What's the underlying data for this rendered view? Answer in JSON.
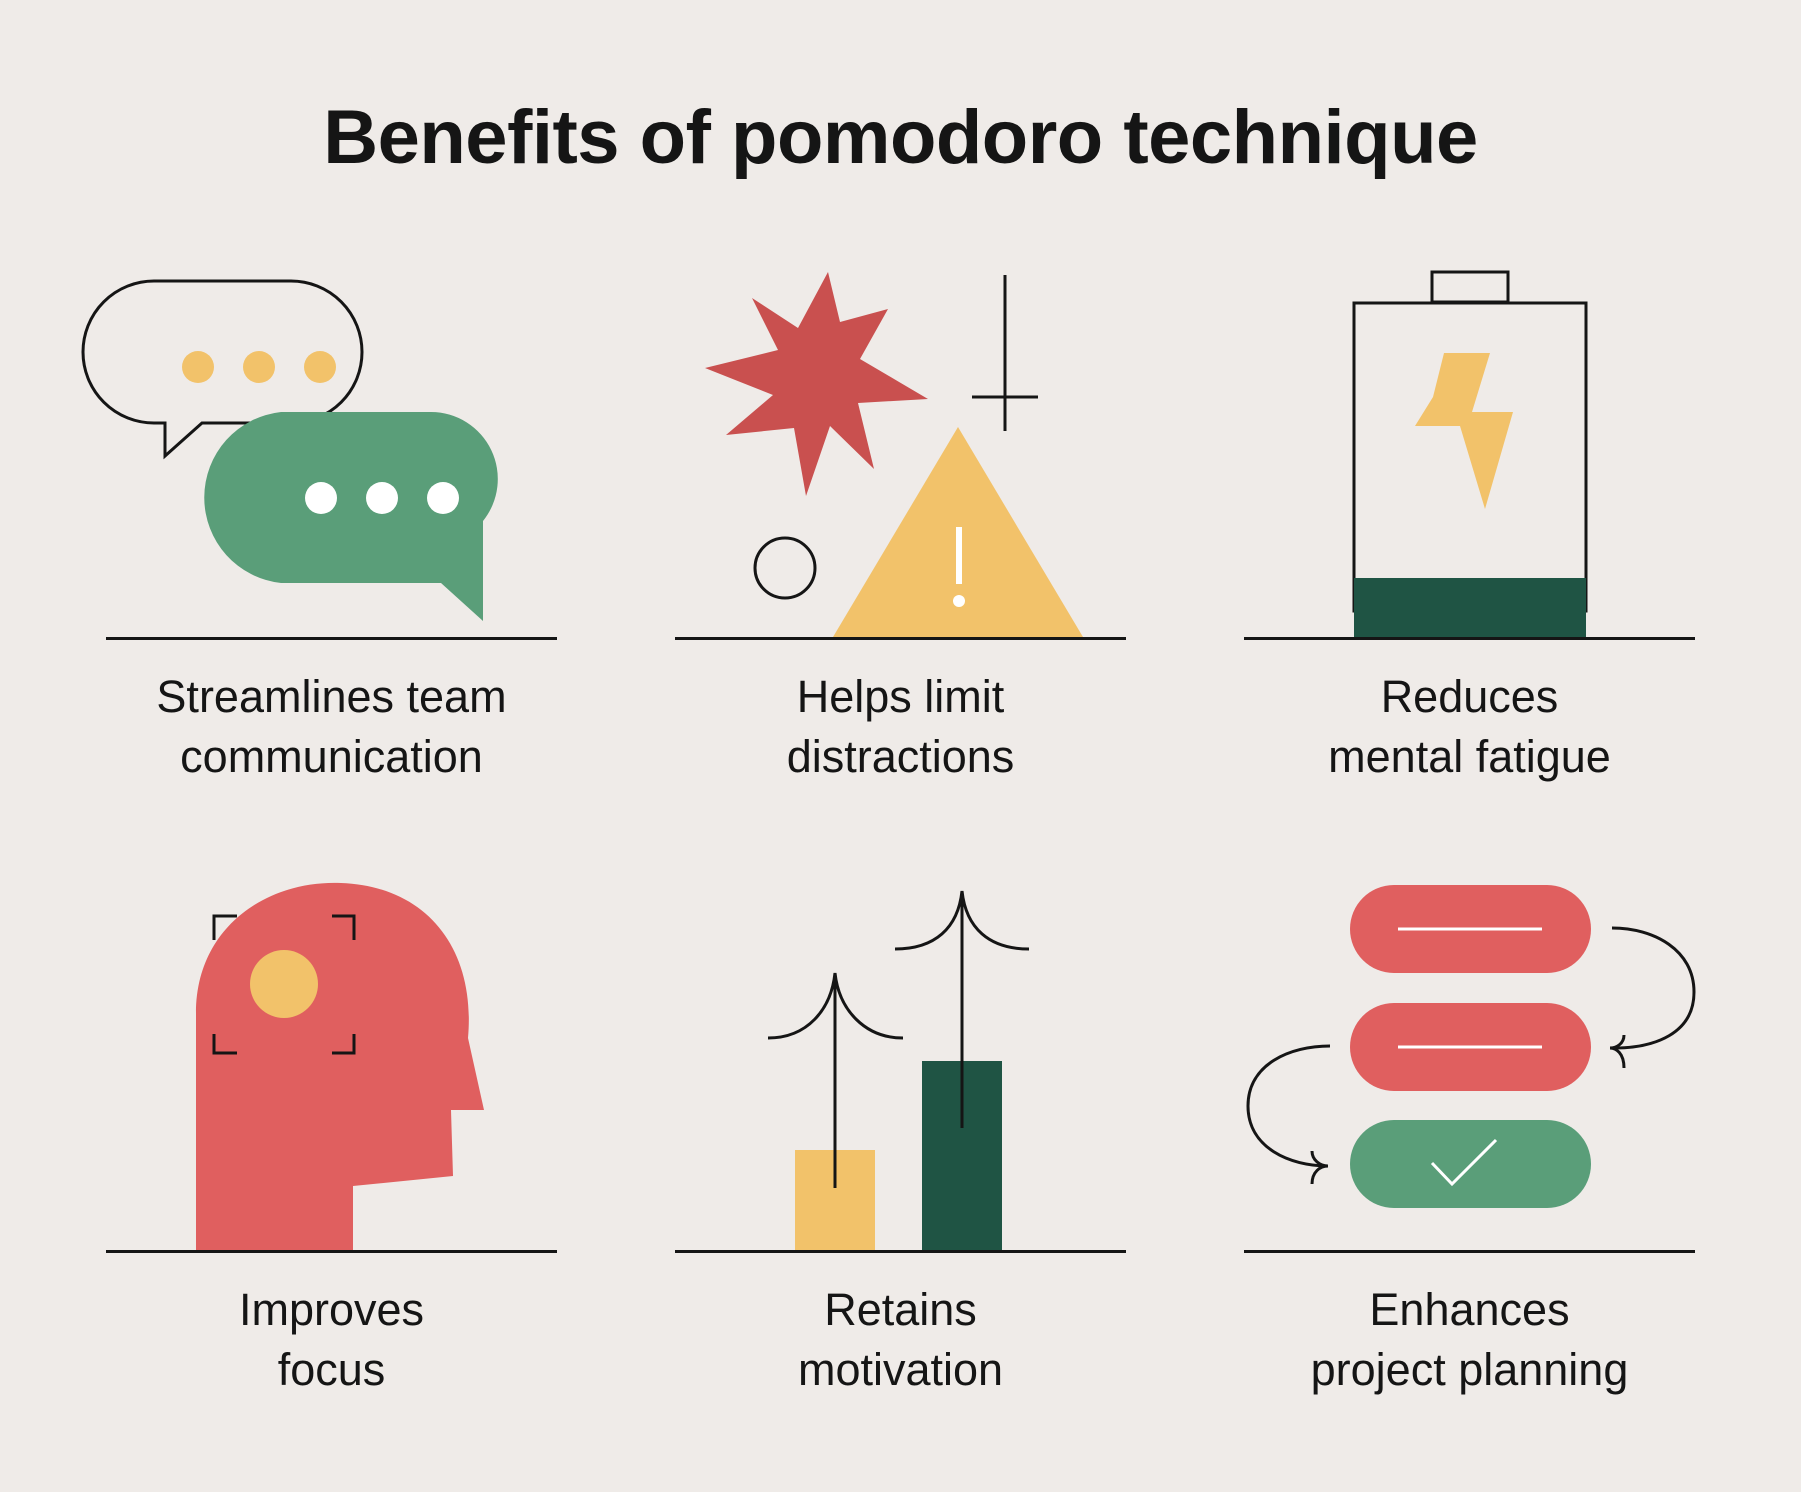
{
  "title": "Benefits of pomodoro technique",
  "colors": {
    "background": "#efebe8",
    "red": "#e05f5f",
    "dark_red": "#c9504f",
    "green": "#5a9e79",
    "dark_green": "#1f5444",
    "yellow": "#f2c26a",
    "ink": "#151515"
  },
  "benefits": [
    {
      "icon": "chat-bubbles-icon",
      "line1": "Streamlines team",
      "line2": "communication"
    },
    {
      "icon": "warning-distractions-icon",
      "line1": "Helps limit",
      "line2": "distractions"
    },
    {
      "icon": "battery-icon",
      "line1": "Reduces",
      "line2": "mental fatigue"
    },
    {
      "icon": "head-focus-icon",
      "line1": "Improves",
      "line2": "focus"
    },
    {
      "icon": "growth-bars-icon",
      "line1": "Retains",
      "line2": "motivation"
    },
    {
      "icon": "task-list-icon",
      "line1": "Enhances",
      "line2": "project planning"
    }
  ]
}
